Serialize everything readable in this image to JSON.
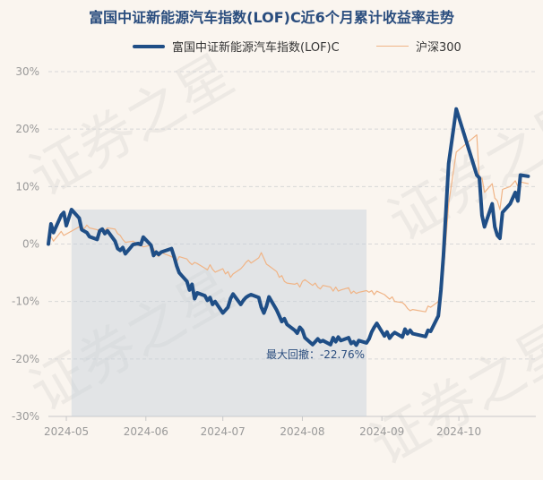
{
  "title": "富国中证新能源汽车指数(LOF)C近6个月累计收益率走势",
  "watermark": "证券之星",
  "legend": [
    {
      "label": "富国中证新能源汽车指数(LOF)C",
      "color": "#1f4e86"
    },
    {
      "label": "沪深300",
      "color": "#f0b486"
    }
  ],
  "chart_data": {
    "type": "line",
    "ylim": [
      -30,
      30
    ],
    "yticks": [
      30,
      20,
      10,
      0,
      -10,
      -20,
      -30
    ],
    "ytick_labels": [
      "30%",
      "20%",
      "10%",
      "0%",
      "-10%",
      "-20%",
      "-30%"
    ],
    "x_range": [
      "2024-04-24",
      "2024-10-31"
    ],
    "x_tick_labels": [
      {
        "date": "2024-05-01",
        "label": "2024-05"
      },
      {
        "date": "2024-06-01",
        "label": "2024-06"
      },
      {
        "date": "2024-07-01",
        "label": "2024-07"
      },
      {
        "date": "2024-08-01",
        "label": "2024-08"
      },
      {
        "date": "2024-09-01",
        "label": "2024-09"
      },
      {
        "date": "2024-10-01",
        "label": "2024-10"
      }
    ],
    "grid": true,
    "legend_position": "top",
    "series": [
      {
        "name": "富国中证新能源汽车指数(LOF)C",
        "color": "#1f4e86",
        "points": [
          [
            "2024-04-24",
            0
          ],
          [
            "2024-04-25",
            3.5
          ],
          [
            "2024-04-26",
            2
          ],
          [
            "2024-04-29",
            5
          ],
          [
            "2024-04-30",
            5.5
          ],
          [
            "2024-05-01",
            3.2
          ],
          [
            "2024-05-03",
            6
          ],
          [
            "2024-05-06",
            4.5
          ],
          [
            "2024-05-07",
            2.5
          ],
          [
            "2024-05-09",
            2
          ],
          [
            "2024-05-10",
            1.3
          ],
          [
            "2024-05-13",
            0.8
          ],
          [
            "2024-05-14",
            2.3
          ],
          [
            "2024-05-15",
            2.6
          ],
          [
            "2024-05-16",
            1.8
          ],
          [
            "2024-05-17",
            2.3
          ],
          [
            "2024-05-20",
            0.5
          ],
          [
            "2024-05-21",
            -0.8
          ],
          [
            "2024-05-22",
            -1.1
          ],
          [
            "2024-05-23",
            -0.6
          ],
          [
            "2024-05-24",
            -1.7
          ],
          [
            "2024-05-27",
            -0.1
          ],
          [
            "2024-05-28",
            0
          ],
          [
            "2024-05-29",
            0.1
          ],
          [
            "2024-05-30",
            -0.1
          ],
          [
            "2024-05-31",
            1.2
          ],
          [
            "2024-06-03",
            -0.2
          ],
          [
            "2024-06-04",
            -2
          ],
          [
            "2024-06-05",
            -1.4
          ],
          [
            "2024-06-06",
            -1.8
          ],
          [
            "2024-06-07",
            -1.4
          ],
          [
            "2024-06-11",
            -0.8
          ],
          [
            "2024-06-12",
            -2.2
          ],
          [
            "2024-06-13",
            -3.8
          ],
          [
            "2024-06-14",
            -5
          ],
          [
            "2024-06-17",
            -6.5
          ],
          [
            "2024-06-18",
            -8
          ],
          [
            "2024-06-19",
            -7
          ],
          [
            "2024-06-20",
            -9.5
          ],
          [
            "2024-06-21",
            -8.5
          ],
          [
            "2024-06-24",
            -9
          ],
          [
            "2024-06-25",
            -9.8
          ],
          [
            "2024-06-26",
            -9.3
          ],
          [
            "2024-06-27",
            -10.5
          ],
          [
            "2024-06-28",
            -10
          ],
          [
            "2024-07-01",
            -12
          ],
          [
            "2024-07-02",
            -11.5
          ],
          [
            "2024-07-03",
            -11
          ],
          [
            "2024-07-04",
            -9.5
          ],
          [
            "2024-07-05",
            -8.7
          ],
          [
            "2024-07-08",
            -10.5
          ],
          [
            "2024-07-09",
            -9.8
          ],
          [
            "2024-07-10",
            -9.3
          ],
          [
            "2024-07-11",
            -9
          ],
          [
            "2024-07-12",
            -8.8
          ],
          [
            "2024-07-15",
            -9.3
          ],
          [
            "2024-07-16",
            -11
          ],
          [
            "2024-07-17",
            -12
          ],
          [
            "2024-07-18",
            -10.8
          ],
          [
            "2024-07-19",
            -9.2
          ],
          [
            "2024-07-22",
            -11.5
          ],
          [
            "2024-07-23",
            -12.5
          ],
          [
            "2024-07-24",
            -13.5
          ],
          [
            "2024-07-25",
            -13
          ],
          [
            "2024-07-26",
            -14
          ],
          [
            "2024-07-29",
            -15
          ],
          [
            "2024-07-30",
            -15.5
          ],
          [
            "2024-07-31",
            -14.5
          ],
          [
            "2024-08-01",
            -15
          ],
          [
            "2024-08-02",
            -16.3
          ],
          [
            "2024-08-05",
            -17.5
          ],
          [
            "2024-08-06",
            -17
          ],
          [
            "2024-08-07",
            -16.5
          ],
          [
            "2024-08-08",
            -17
          ],
          [
            "2024-08-09",
            -16.8
          ],
          [
            "2024-08-12",
            -17.5
          ],
          [
            "2024-08-13",
            -16.3
          ],
          [
            "2024-08-14",
            -17
          ],
          [
            "2024-08-15",
            -16.2
          ],
          [
            "2024-08-16",
            -16.8
          ],
          [
            "2024-08-19",
            -16.3
          ],
          [
            "2024-08-20",
            -17.3
          ],
          [
            "2024-08-21",
            -17
          ],
          [
            "2024-08-22",
            -17.6
          ],
          [
            "2024-08-23",
            -16.8
          ],
          [
            "2024-08-26",
            -17.2
          ],
          [
            "2024-08-27",
            -16.5
          ],
          [
            "2024-08-28",
            -15.3
          ],
          [
            "2024-08-29",
            -14.5
          ],
          [
            "2024-08-30",
            -13.8
          ],
          [
            "2024-09-02",
            -16
          ],
          [
            "2024-09-03",
            -15.3
          ],
          [
            "2024-09-04",
            -16.4
          ],
          [
            "2024-09-05",
            -15.8
          ],
          [
            "2024-09-06",
            -15.4
          ],
          [
            "2024-09-09",
            -16.2
          ],
          [
            "2024-09-10",
            -14.8
          ],
          [
            "2024-09-11",
            -15.6
          ],
          [
            "2024-09-12",
            -15
          ],
          [
            "2024-09-13",
            -15.6
          ],
          [
            "2024-09-18",
            -16.1
          ],
          [
            "2024-09-19",
            -15
          ],
          [
            "2024-09-20",
            -15.2
          ],
          [
            "2024-09-23",
            -12.5
          ],
          [
            "2024-09-24",
            -8
          ],
          [
            "2024-09-25",
            -2
          ],
          [
            "2024-09-26",
            6
          ],
          [
            "2024-09-27",
            14
          ],
          [
            "2024-09-30",
            23.5
          ],
          [
            "2024-10-08",
            12
          ],
          [
            "2024-10-09",
            11.5
          ],
          [
            "2024-10-10",
            5
          ],
          [
            "2024-10-11",
            3
          ],
          [
            "2024-10-14",
            7
          ],
          [
            "2024-10-15",
            3
          ],
          [
            "2024-10-16",
            1.5
          ],
          [
            "2024-10-17",
            1
          ],
          [
            "2024-10-18",
            5.5
          ],
          [
            "2024-10-21",
            7
          ],
          [
            "2024-10-22",
            8
          ],
          [
            "2024-10-23",
            9
          ],
          [
            "2024-10-24",
            7.5
          ],
          [
            "2024-10-25",
            12
          ],
          [
            "2024-10-28",
            11.8
          ]
        ]
      },
      {
        "name": "沪深300",
        "color": "#f0b486",
        "points": [
          [
            "2024-04-24",
            0
          ],
          [
            "2024-04-25",
            1.3
          ],
          [
            "2024-04-26",
            0.5
          ],
          [
            "2024-04-29",
            2.2
          ],
          [
            "2024-04-30",
            1.5
          ],
          [
            "2024-05-06",
            3
          ],
          [
            "2024-05-07",
            2.8
          ],
          [
            "2024-05-08",
            2.7
          ],
          [
            "2024-05-09",
            3.3
          ],
          [
            "2024-05-10",
            2.8
          ],
          [
            "2024-05-13",
            2.5
          ],
          [
            "2024-05-14",
            2.2
          ],
          [
            "2024-05-15",
            2.6
          ],
          [
            "2024-05-16",
            2.4
          ],
          [
            "2024-05-17",
            2.8
          ],
          [
            "2024-05-20",
            2.6
          ],
          [
            "2024-05-21",
            1.8
          ],
          [
            "2024-05-22",
            1.5
          ],
          [
            "2024-05-23",
            0.8
          ],
          [
            "2024-05-24",
            0.3
          ],
          [
            "2024-05-27",
            0.5
          ],
          [
            "2024-05-28",
            0.2
          ],
          [
            "2024-05-29",
            -0.3
          ],
          [
            "2024-05-30",
            -0.2
          ],
          [
            "2024-05-31",
            -0.5
          ],
          [
            "2024-06-03",
            -0.2
          ],
          [
            "2024-06-04",
            -0.8
          ],
          [
            "2024-06-05",
            -1.8
          ],
          [
            "2024-06-06",
            -2.2
          ],
          [
            "2024-06-07",
            -1.5
          ],
          [
            "2024-06-11",
            -2.2
          ],
          [
            "2024-06-12",
            -2.5
          ],
          [
            "2024-06-13",
            -3
          ],
          [
            "2024-06-14",
            -2.2
          ],
          [
            "2024-06-17",
            -2.6
          ],
          [
            "2024-06-18",
            -3.2
          ],
          [
            "2024-06-19",
            -3.6
          ],
          [
            "2024-06-20",
            -3.2
          ],
          [
            "2024-06-21",
            -3.4
          ],
          [
            "2024-06-24",
            -4.2
          ],
          [
            "2024-06-25",
            -4.5
          ],
          [
            "2024-06-26",
            -3.6
          ],
          [
            "2024-06-27",
            -4.4
          ],
          [
            "2024-06-28",
            -4.9
          ],
          [
            "2024-07-01",
            -4.3
          ],
          [
            "2024-07-02",
            -5.2
          ],
          [
            "2024-07-03",
            -4.8
          ],
          [
            "2024-07-04",
            -5.8
          ],
          [
            "2024-07-05",
            -5.2
          ],
          [
            "2024-07-08",
            -4.3
          ],
          [
            "2024-07-09",
            -3.8
          ],
          [
            "2024-07-10",
            -3.2
          ],
          [
            "2024-07-11",
            -2.8
          ],
          [
            "2024-07-12",
            -3.3
          ],
          [
            "2024-07-15",
            -2.4
          ],
          [
            "2024-07-16",
            -1.5
          ],
          [
            "2024-07-17",
            -2.5
          ],
          [
            "2024-07-18",
            -3.5
          ],
          [
            "2024-07-19",
            -3.8
          ],
          [
            "2024-07-22",
            -4.8
          ],
          [
            "2024-07-23",
            -5.8
          ],
          [
            "2024-07-24",
            -5.5
          ],
          [
            "2024-07-25",
            -6.5
          ],
          [
            "2024-07-26",
            -6.8
          ],
          [
            "2024-07-29",
            -7
          ],
          [
            "2024-07-30",
            -6.8
          ],
          [
            "2024-07-31",
            -7.5
          ],
          [
            "2024-08-01",
            -6.5
          ],
          [
            "2024-08-02",
            -6.2
          ],
          [
            "2024-08-05",
            -7.2
          ],
          [
            "2024-08-06",
            -6.8
          ],
          [
            "2024-08-07",
            -7.5
          ],
          [
            "2024-08-08",
            -7.8
          ],
          [
            "2024-08-09",
            -7.2
          ],
          [
            "2024-08-12",
            -7.5
          ],
          [
            "2024-08-13",
            -8.2
          ],
          [
            "2024-08-14",
            -7.5
          ],
          [
            "2024-08-15",
            -8.2
          ],
          [
            "2024-08-16",
            -8
          ],
          [
            "2024-08-19",
            -7.6
          ],
          [
            "2024-08-20",
            -8.6
          ],
          [
            "2024-08-21",
            -8.2
          ],
          [
            "2024-08-22",
            -8.6
          ],
          [
            "2024-08-23",
            -8.4
          ],
          [
            "2024-08-26",
            -8.1
          ],
          [
            "2024-08-27",
            -8.4
          ],
          [
            "2024-08-28",
            -8.1
          ],
          [
            "2024-08-29",
            -8.8
          ],
          [
            "2024-08-30",
            -8.2
          ],
          [
            "2024-09-02",
            -8.8
          ],
          [
            "2024-09-03",
            -9.2
          ],
          [
            "2024-09-04",
            -9.6
          ],
          [
            "2024-09-05",
            -9.2
          ],
          [
            "2024-09-06",
            -10
          ],
          [
            "2024-09-09",
            -10.2
          ],
          [
            "2024-09-10",
            -10.6
          ],
          [
            "2024-09-11",
            -11.2
          ],
          [
            "2024-09-12",
            -11.6
          ],
          [
            "2024-09-13",
            -11.4
          ],
          [
            "2024-09-18",
            -11.8
          ],
          [
            "2024-09-19",
            -10.8
          ],
          [
            "2024-09-20",
            -11
          ],
          [
            "2024-09-23",
            -10
          ],
          [
            "2024-09-24",
            -7
          ],
          [
            "2024-09-25",
            -5
          ],
          [
            "2024-09-26",
            1
          ],
          [
            "2024-09-27",
            7
          ],
          [
            "2024-09-30",
            16
          ],
          [
            "2024-10-08",
            19
          ],
          [
            "2024-10-09",
            11
          ],
          [
            "2024-10-10",
            11.5
          ],
          [
            "2024-10-11",
            9
          ],
          [
            "2024-10-14",
            10.5
          ],
          [
            "2024-10-15",
            8
          ],
          [
            "2024-10-16",
            7.5
          ],
          [
            "2024-10-17",
            6
          ],
          [
            "2024-10-18",
            9.5
          ],
          [
            "2024-10-21",
            10
          ],
          [
            "2024-10-22",
            10.5
          ],
          [
            "2024-10-23",
            11
          ],
          [
            "2024-10-24",
            10
          ],
          [
            "2024-10-25",
            10.8
          ],
          [
            "2024-10-28",
            10.5
          ]
        ]
      }
    ],
    "drawdown": {
      "label": "最大回撤：-22.76%",
      "start": "2024-05-03",
      "end": "2024-08-26",
      "color": "#c5d0dc"
    }
  }
}
